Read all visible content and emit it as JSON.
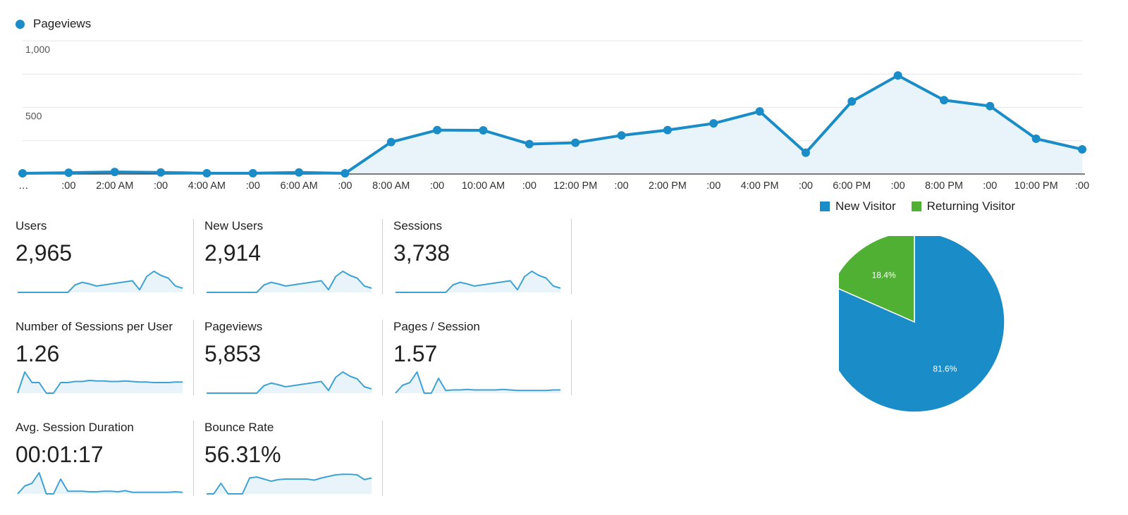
{
  "chart_data": [
    {
      "type": "area",
      "legend": [
        "Pageviews"
      ],
      "legend_position": "top-left",
      "ylim": [
        0,
        1000
      ],
      "y_ticks": [
        "1,000",
        "500"
      ],
      "x_tick_labels": [
        "…",
        ":00",
        "2:00 AM",
        ":00",
        "4:00 AM",
        ":00",
        "6:00 AM",
        ":00",
        "8:00 AM",
        ":00",
        "10:00 AM",
        ":00",
        "12:00 PM",
        ":00",
        "2:00 PM",
        ":00",
        "4:00 PM",
        ":00",
        "6:00 PM",
        ":00",
        "8:00 PM",
        ":00",
        "10:00 PM",
        ":00"
      ],
      "series": [
        {
          "name": "Pageviews",
          "color": "#1a8cc7",
          "values": [
            5,
            10,
            15,
            12,
            6,
            6,
            12,
            5,
            240,
            330,
            328,
            225,
            235,
            290,
            330,
            380,
            470,
            160,
            545,
            740,
            555,
            510,
            265,
            185
          ]
        }
      ],
      "grid": true
    },
    {
      "type": "pie",
      "legend": [
        "New Visitor",
        "Returning Visitor"
      ],
      "legend_position": "top",
      "slices": [
        {
          "name": "New Visitor",
          "value": 81.6,
          "label": "81.6%",
          "color": "#1a8cc7"
        },
        {
          "name": "Returning Visitor",
          "value": 18.4,
          "label": "18.4%",
          "color": "#50b033"
        }
      ]
    }
  ],
  "metrics": [
    {
      "label": "Users",
      "value": "2,965",
      "spark": [
        0,
        0,
        0,
        0,
        0,
        0,
        0,
        0,
        14,
        19,
        16,
        12,
        14,
        16,
        18,
        20,
        22,
        5,
        30,
        40,
        32,
        27,
        12,
        8
      ]
    },
    {
      "label": "New Users",
      "value": "2,914",
      "spark": [
        0,
        0,
        0,
        0,
        0,
        0,
        0,
        0,
        14,
        19,
        16,
        12,
        14,
        16,
        18,
        20,
        22,
        5,
        30,
        40,
        32,
        27,
        12,
        8
      ]
    },
    {
      "label": "Sessions",
      "value": "3,738",
      "spark": [
        0,
        0,
        0,
        0,
        0,
        0,
        0,
        0,
        14,
        19,
        16,
        12,
        14,
        16,
        18,
        20,
        22,
        5,
        30,
        40,
        32,
        27,
        12,
        8
      ]
    },
    {
      "label": "Number of Sessions per User",
      "value": "1.26",
      "spark": [
        0,
        40,
        20,
        20,
        0,
        0,
        20,
        20,
        22,
        22,
        24,
        23,
        23,
        22,
        22,
        23,
        22,
        21,
        21,
        20,
        20,
        20,
        21,
        21
      ]
    },
    {
      "label": "Pageviews",
      "value": "5,853",
      "spark": [
        0,
        0,
        0,
        0,
        0,
        0,
        0,
        0,
        14,
        19,
        16,
        12,
        14,
        16,
        18,
        20,
        22,
        5,
        30,
        40,
        32,
        27,
        12,
        8
      ]
    },
    {
      "label": "Pages / Session",
      "value": "1.57",
      "spark": [
        0,
        15,
        20,
        40,
        0,
        0,
        28,
        5,
        6,
        6,
        7,
        6,
        6,
        6,
        6,
        7,
        6,
        5,
        5,
        5,
        5,
        5,
        6,
        6
      ]
    },
    {
      "label": "Avg. Session Duration",
      "value": "00:01:17",
      "spark": [
        0,
        15,
        20,
        40,
        0,
        0,
        28,
        5,
        5,
        5,
        4,
        4,
        5,
        5,
        4,
        6,
        3,
        3,
        3,
        3,
        3,
        3,
        4,
        3
      ]
    },
    {
      "label": "Bounce Rate",
      "value": "56.31%",
      "spark": [
        0,
        0,
        20,
        0,
        0,
        0,
        30,
        32,
        28,
        24,
        27,
        28,
        28,
        28,
        28,
        26,
        30,
        33,
        36,
        37,
        37,
        36,
        27,
        30
      ]
    }
  ]
}
